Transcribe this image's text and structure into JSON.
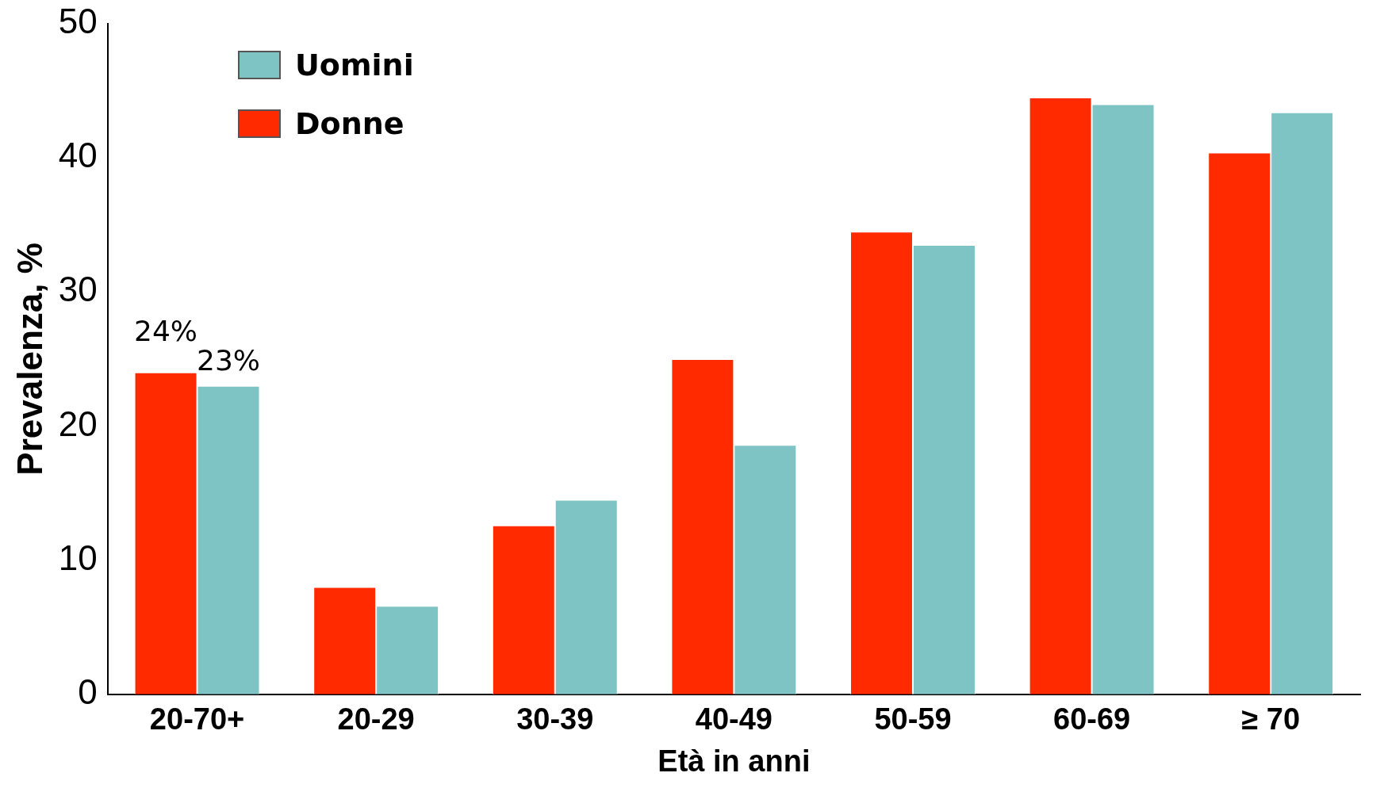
{
  "chart_data": {
    "type": "bar",
    "xlabel": "Età in anni",
    "ylabel": "Prevalenza, %",
    "categories": [
      "20-70+",
      "20-29",
      "30-39",
      "40-49",
      "50-59",
      "60-69",
      "≥ 70"
    ],
    "series": [
      {
        "name": "Donne",
        "color": "#ff2a00",
        "values": [
          24,
          8,
          12.6,
          25,
          34.5,
          44.5,
          40.4
        ],
        "value_labels": [
          "24%",
          null,
          null,
          null,
          null,
          null,
          null
        ]
      },
      {
        "name": "Uomini",
        "color": "#7fc4c4",
        "values": [
          23,
          6.6,
          14.5,
          18.6,
          33.5,
          44,
          43.4
        ],
        "value_labels": [
          "23%",
          null,
          null,
          null,
          null,
          null,
          null
        ]
      }
    ],
    "ylim": [
      0,
      50
    ],
    "yticks": [
      0,
      10,
      20,
      30,
      40,
      50
    ],
    "grid": false,
    "legend": "top left"
  }
}
